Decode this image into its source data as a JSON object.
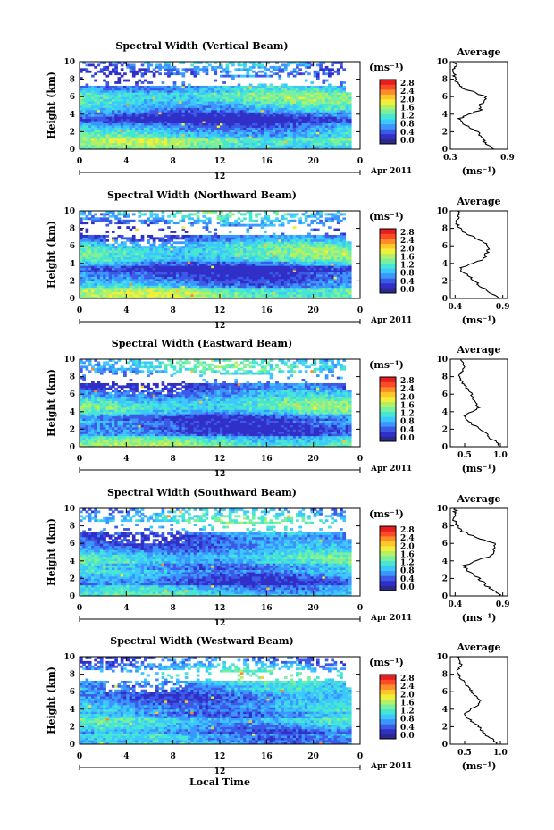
{
  "figure": {
    "xlabel": "Local Time",
    "date_label": "Apr 2011",
    "date_day": "12",
    "ylabel": "Height (km)",
    "unit": "(ms⁻¹)",
    "avg_title": "Average",
    "avg_unit": "(ms⁻¹)"
  },
  "colorbar": {
    "ticks": [
      "2.8",
      "2.4",
      "2.0",
      "1.6",
      "1.2",
      "0.8",
      "0.4",
      "0.0"
    ],
    "colors": [
      "#2a2a8a",
      "#3030c8",
      "#3c5ae6",
      "#3c96ff",
      "#3cc8ff",
      "#46e6d2",
      "#78f0a0",
      "#b4f064",
      "#f0f03c",
      "#ffc828",
      "#ff8c28",
      "#ff4a28",
      "#e61e1e"
    ]
  },
  "chart_data": [
    {
      "type": "heatmap",
      "title": "Spectral Width (Vertical Beam)",
      "x_ticks": [
        "0",
        "4",
        "8",
        "12",
        "16",
        "20",
        "0"
      ],
      "y_ticks": [
        "0",
        "2",
        "4",
        "6",
        "8",
        "10"
      ],
      "xlim": [
        0,
        24
      ],
      "ylim": [
        0,
        10
      ],
      "average_profile": {
        "x_ticks": [
          "0.3",
          "0.9"
        ],
        "xlim": [
          0.3,
          0.9
        ],
        "height": [
          0,
          0.5,
          1,
          1.5,
          2,
          2.5,
          3,
          3.5,
          4,
          4.5,
          5,
          5.5,
          6,
          6.5,
          7,
          7.5,
          8,
          8.5,
          9,
          9.5,
          10
        ],
        "value": [
          0.74,
          0.7,
          0.65,
          0.62,
          0.58,
          0.5,
          0.43,
          0.4,
          0.5,
          0.62,
          0.6,
          0.65,
          0.68,
          0.55,
          0.42,
          0.37,
          0.35,
          0.34,
          0.33,
          0.36,
          0.34
        ]
      }
    },
    {
      "type": "heatmap",
      "title": "Spectral Width (Northward Beam)",
      "x_ticks": [
        "0",
        "4",
        "8",
        "12",
        "16",
        "20",
        "0"
      ],
      "y_ticks": [
        "0",
        "2",
        "4",
        "6",
        "8",
        "10"
      ],
      "xlim": [
        0,
        24
      ],
      "ylim": [
        0,
        10
      ],
      "average_profile": {
        "x_ticks": [
          "0.4",
          "0.9"
        ],
        "xlim": [
          0.35,
          0.95
        ],
        "height": [
          0,
          0.5,
          1,
          1.5,
          2,
          2.5,
          3,
          3.5,
          4,
          4.5,
          5,
          5.5,
          6,
          6.5,
          7,
          7.5,
          8,
          8.5,
          9,
          9.5,
          10
        ],
        "value": [
          0.85,
          0.8,
          0.72,
          0.65,
          0.6,
          0.55,
          0.48,
          0.45,
          0.6,
          0.7,
          0.72,
          0.75,
          0.75,
          0.68,
          0.6,
          0.5,
          0.45,
          0.42,
          0.42,
          0.45,
          0.43
        ]
      }
    },
    {
      "type": "heatmap",
      "title": "Spectral Width (Eastward Beam)",
      "x_ticks": [
        "0",
        "4",
        "8",
        "12",
        "16",
        "20",
        "0"
      ],
      "y_ticks": [
        "0",
        "2",
        "4",
        "6",
        "8",
        "10"
      ],
      "xlim": [
        0,
        24
      ],
      "ylim": [
        0,
        10
      ],
      "average_profile": {
        "x_ticks": [
          "0.5",
          "1.0"
        ],
        "xlim": [
          0.3,
          1.1
        ],
        "height": [
          0,
          0.5,
          1,
          1.5,
          2,
          2.5,
          3,
          3.5,
          4,
          4.5,
          5,
          5.5,
          6,
          6.5,
          7,
          7.5,
          8,
          8.5,
          9,
          9.5,
          10
        ],
        "value": [
          1.0,
          0.95,
          0.85,
          0.8,
          0.72,
          0.62,
          0.55,
          0.5,
          0.6,
          0.7,
          0.65,
          0.62,
          0.6,
          0.55,
          0.5,
          0.45,
          0.42,
          0.45,
          0.5,
          0.48,
          0.45
        ]
      }
    },
    {
      "type": "heatmap",
      "title": "Spectral Width (Southward Beam)",
      "x_ticks": [
        "0",
        "4",
        "8",
        "12",
        "16",
        "20",
        "0"
      ],
      "y_ticks": [
        "0",
        "2",
        "4",
        "6",
        "8",
        "10"
      ],
      "xlim": [
        0,
        24
      ],
      "ylim": [
        0,
        10
      ],
      "average_profile": {
        "x_ticks": [
          "0.4",
          "0.9"
        ],
        "xlim": [
          0.35,
          0.95
        ],
        "height": [
          0,
          0.5,
          1,
          1.5,
          2,
          2.5,
          3,
          3.5,
          4,
          4.5,
          5,
          5.5,
          6,
          6.5,
          7,
          7.5,
          8,
          8.5,
          9,
          9.5,
          10
        ],
        "value": [
          0.88,
          0.82,
          0.75,
          0.7,
          0.65,
          0.58,
          0.52,
          0.5,
          0.62,
          0.75,
          0.8,
          0.82,
          0.8,
          0.68,
          0.55,
          0.45,
          0.42,
          0.4,
          0.38,
          0.4,
          0.4
        ]
      }
    },
    {
      "type": "heatmap",
      "title": "Spectral Width (Westward Beam)",
      "x_ticks": [
        "0",
        "4",
        "8",
        "12",
        "16",
        "20",
        "0"
      ],
      "y_ticks": [
        "0",
        "2",
        "4",
        "6",
        "8",
        "10"
      ],
      "xlim": [
        0,
        24
      ],
      "ylim": [
        0,
        10
      ],
      "average_profile": {
        "x_ticks": [
          "0.5",
          "1.0"
        ],
        "xlim": [
          0.3,
          1.1
        ],
        "height": [
          0,
          0.5,
          1,
          1.5,
          2,
          2.5,
          3,
          3.5,
          4,
          4.5,
          5,
          5.5,
          6,
          6.5,
          7,
          7.5,
          8,
          8.5,
          9,
          9.5,
          10
        ],
        "value": [
          0.95,
          0.9,
          0.8,
          0.75,
          0.7,
          0.62,
          0.55,
          0.5,
          0.6,
          0.68,
          0.72,
          0.65,
          0.6,
          0.55,
          0.5,
          0.45,
          0.42,
          0.4,
          0.45,
          0.42,
          0.4
        ]
      }
    }
  ]
}
